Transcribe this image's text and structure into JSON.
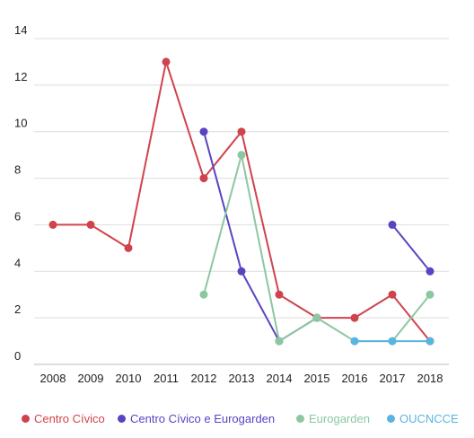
{
  "chart_data": {
    "type": "line",
    "categories": [
      "2008",
      "2009",
      "2010",
      "2011",
      "2012",
      "2013",
      "2014",
      "2015",
      "2016",
      "2017",
      "2018"
    ],
    "ylim": [
      0,
      14
    ],
    "yticks": [
      0,
      2,
      4,
      6,
      8,
      10,
      12,
      14
    ],
    "grid": true,
    "legend_position": "bottom",
    "series": [
      {
        "name": "Centro Cívico",
        "color": "#d0434c",
        "values": [
          6,
          6,
          5,
          13,
          8,
          10,
          3,
          2,
          2,
          3,
          1
        ]
      },
      {
        "name": "Centro Cívico e Eurogarden",
        "color": "#5a43c2",
        "values": [
          null,
          null,
          null,
          null,
          10,
          4,
          1,
          2,
          null,
          6,
          4
        ]
      },
      {
        "name": "Eurogarden",
        "color": "#8cc7a1",
        "values": [
          null,
          null,
          null,
          null,
          3,
          9,
          1,
          2,
          1,
          1,
          3
        ]
      },
      {
        "name": "OUCNCCE",
        "color": "#5ab4e0",
        "values": [
          null,
          null,
          null,
          null,
          null,
          null,
          null,
          null,
          1,
          1,
          1
        ]
      }
    ]
  }
}
